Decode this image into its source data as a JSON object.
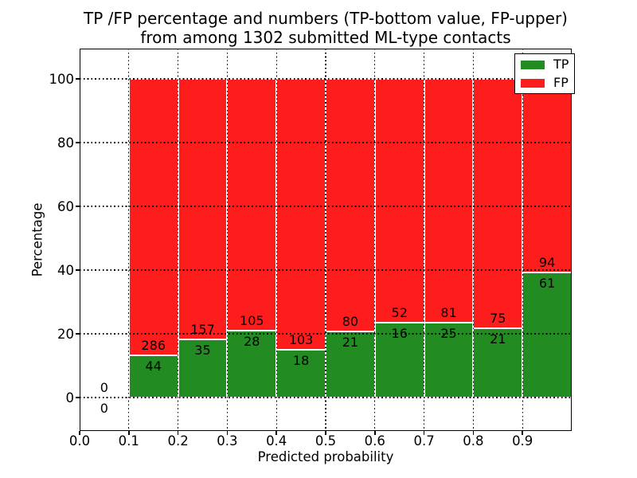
{
  "figure": {
    "title_line1": "TP /FP percentage and numbers (TP-bottom value, FP-upper)",
    "title_line2": "from among 1302 submitted ML-type contacts",
    "background": "#ffffff"
  },
  "axes": {
    "xlabel": "Predicted probability",
    "ylabel": "Percentage",
    "x_tick_labels": [
      "0.0",
      "0.1",
      "0.2",
      "0.3",
      "0.4",
      "0.5",
      "0.6",
      "0.7",
      "0.8",
      "0.9"
    ],
    "y_tick_labels": [
      "0",
      "20",
      "40",
      "60",
      "80",
      "100"
    ],
    "y_tick_values": [
      0,
      20,
      40,
      60,
      80,
      100
    ],
    "xlim": [
      0.0,
      1.0
    ],
    "ylim": [
      -10.5,
      109.5
    ],
    "grid_style": "dotted",
    "grid_color": "#000000"
  },
  "legend": {
    "position": "upper-right",
    "items": [
      {
        "label": "TP",
        "color": "#228b22"
      },
      {
        "label": "FP",
        "color": "#fd1d1d"
      }
    ]
  },
  "chart_data": {
    "type": "bar",
    "stacked": true,
    "normalized_to_percent": true,
    "title": "TP /FP percentage and numbers (TP-bottom value, FP-upper) from among 1302 submitted ML-type contacts",
    "xlabel": "Predicted probability",
    "ylabel": "Percentage",
    "ylim": [
      -10.5,
      109.5
    ],
    "xlim": [
      0.0,
      1.0
    ],
    "grid": true,
    "legend_position": "upper right",
    "total_contacts": 1302,
    "bin_edges": [
      0.0,
      0.1,
      0.2,
      0.3,
      0.4,
      0.5,
      0.6,
      0.7,
      0.8,
      0.9,
      1.0
    ],
    "series": [
      {
        "name": "TP",
        "color": "#228b22",
        "counts": [
          0,
          44,
          35,
          28,
          18,
          21,
          16,
          25,
          21,
          61
        ],
        "percent": [
          0,
          13.33,
          18.23,
          21.05,
          14.88,
          20.79,
          23.53,
          23.58,
          21.88,
          39.35
        ]
      },
      {
        "name": "FP",
        "color": "#fd1d1d",
        "counts": [
          0,
          286,
          157,
          105,
          103,
          80,
          52,
          81,
          75,
          94
        ],
        "percent": [
          0,
          86.67,
          81.77,
          78.95,
          85.12,
          79.21,
          76.47,
          76.42,
          78.13,
          60.65
        ]
      }
    ]
  }
}
